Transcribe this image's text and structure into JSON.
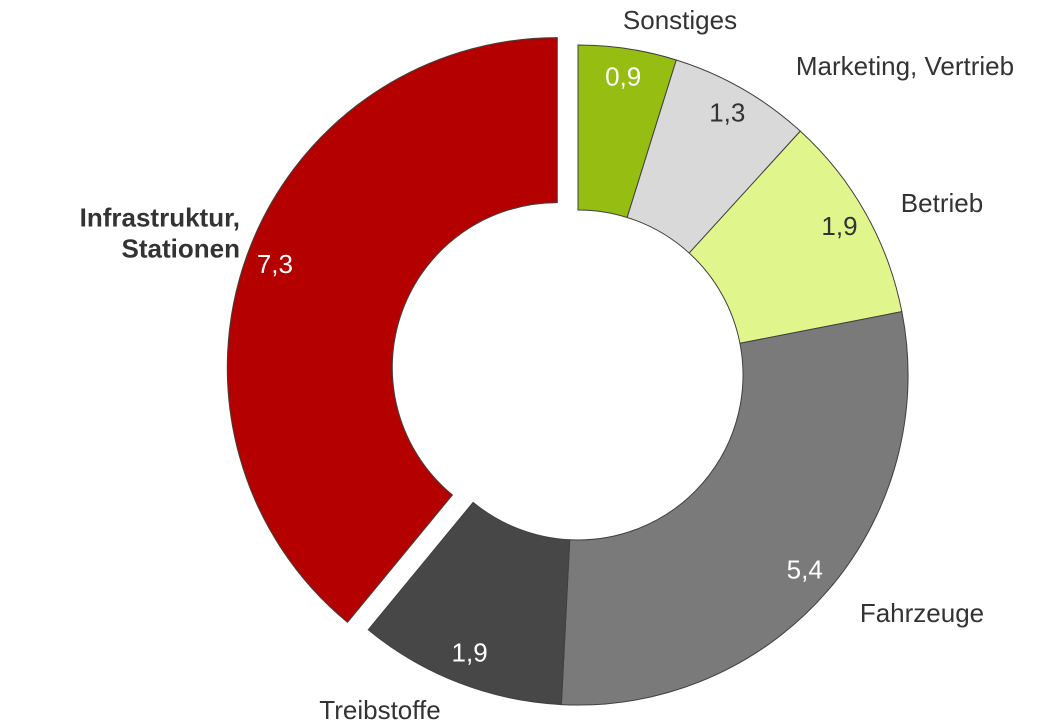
{
  "chart_data": {
    "type": "donut",
    "categories": [
      "Sonstiges",
      "Marketing, Vertrieb",
      "Betrieb",
      "Fahrzeuge",
      "Treibstoffe",
      "Infrastruktur,\nStationen"
    ],
    "values": [
      0.9,
      1.3,
      1.9,
      5.4,
      1.9,
      7.3
    ],
    "value_labels": [
      "0,9",
      "1,3",
      "1,9",
      "5,4",
      "1,9",
      "7,3"
    ],
    "colors": [
      "#95bd12",
      "#d9d9d9",
      "#e0f58c",
      "#7a7a7a",
      "#474747",
      "#b50000"
    ],
    "exploded": [
      false,
      false,
      false,
      false,
      false,
      true
    ],
    "bold_labels": [
      false,
      false,
      false,
      false,
      false,
      true
    ]
  }
}
